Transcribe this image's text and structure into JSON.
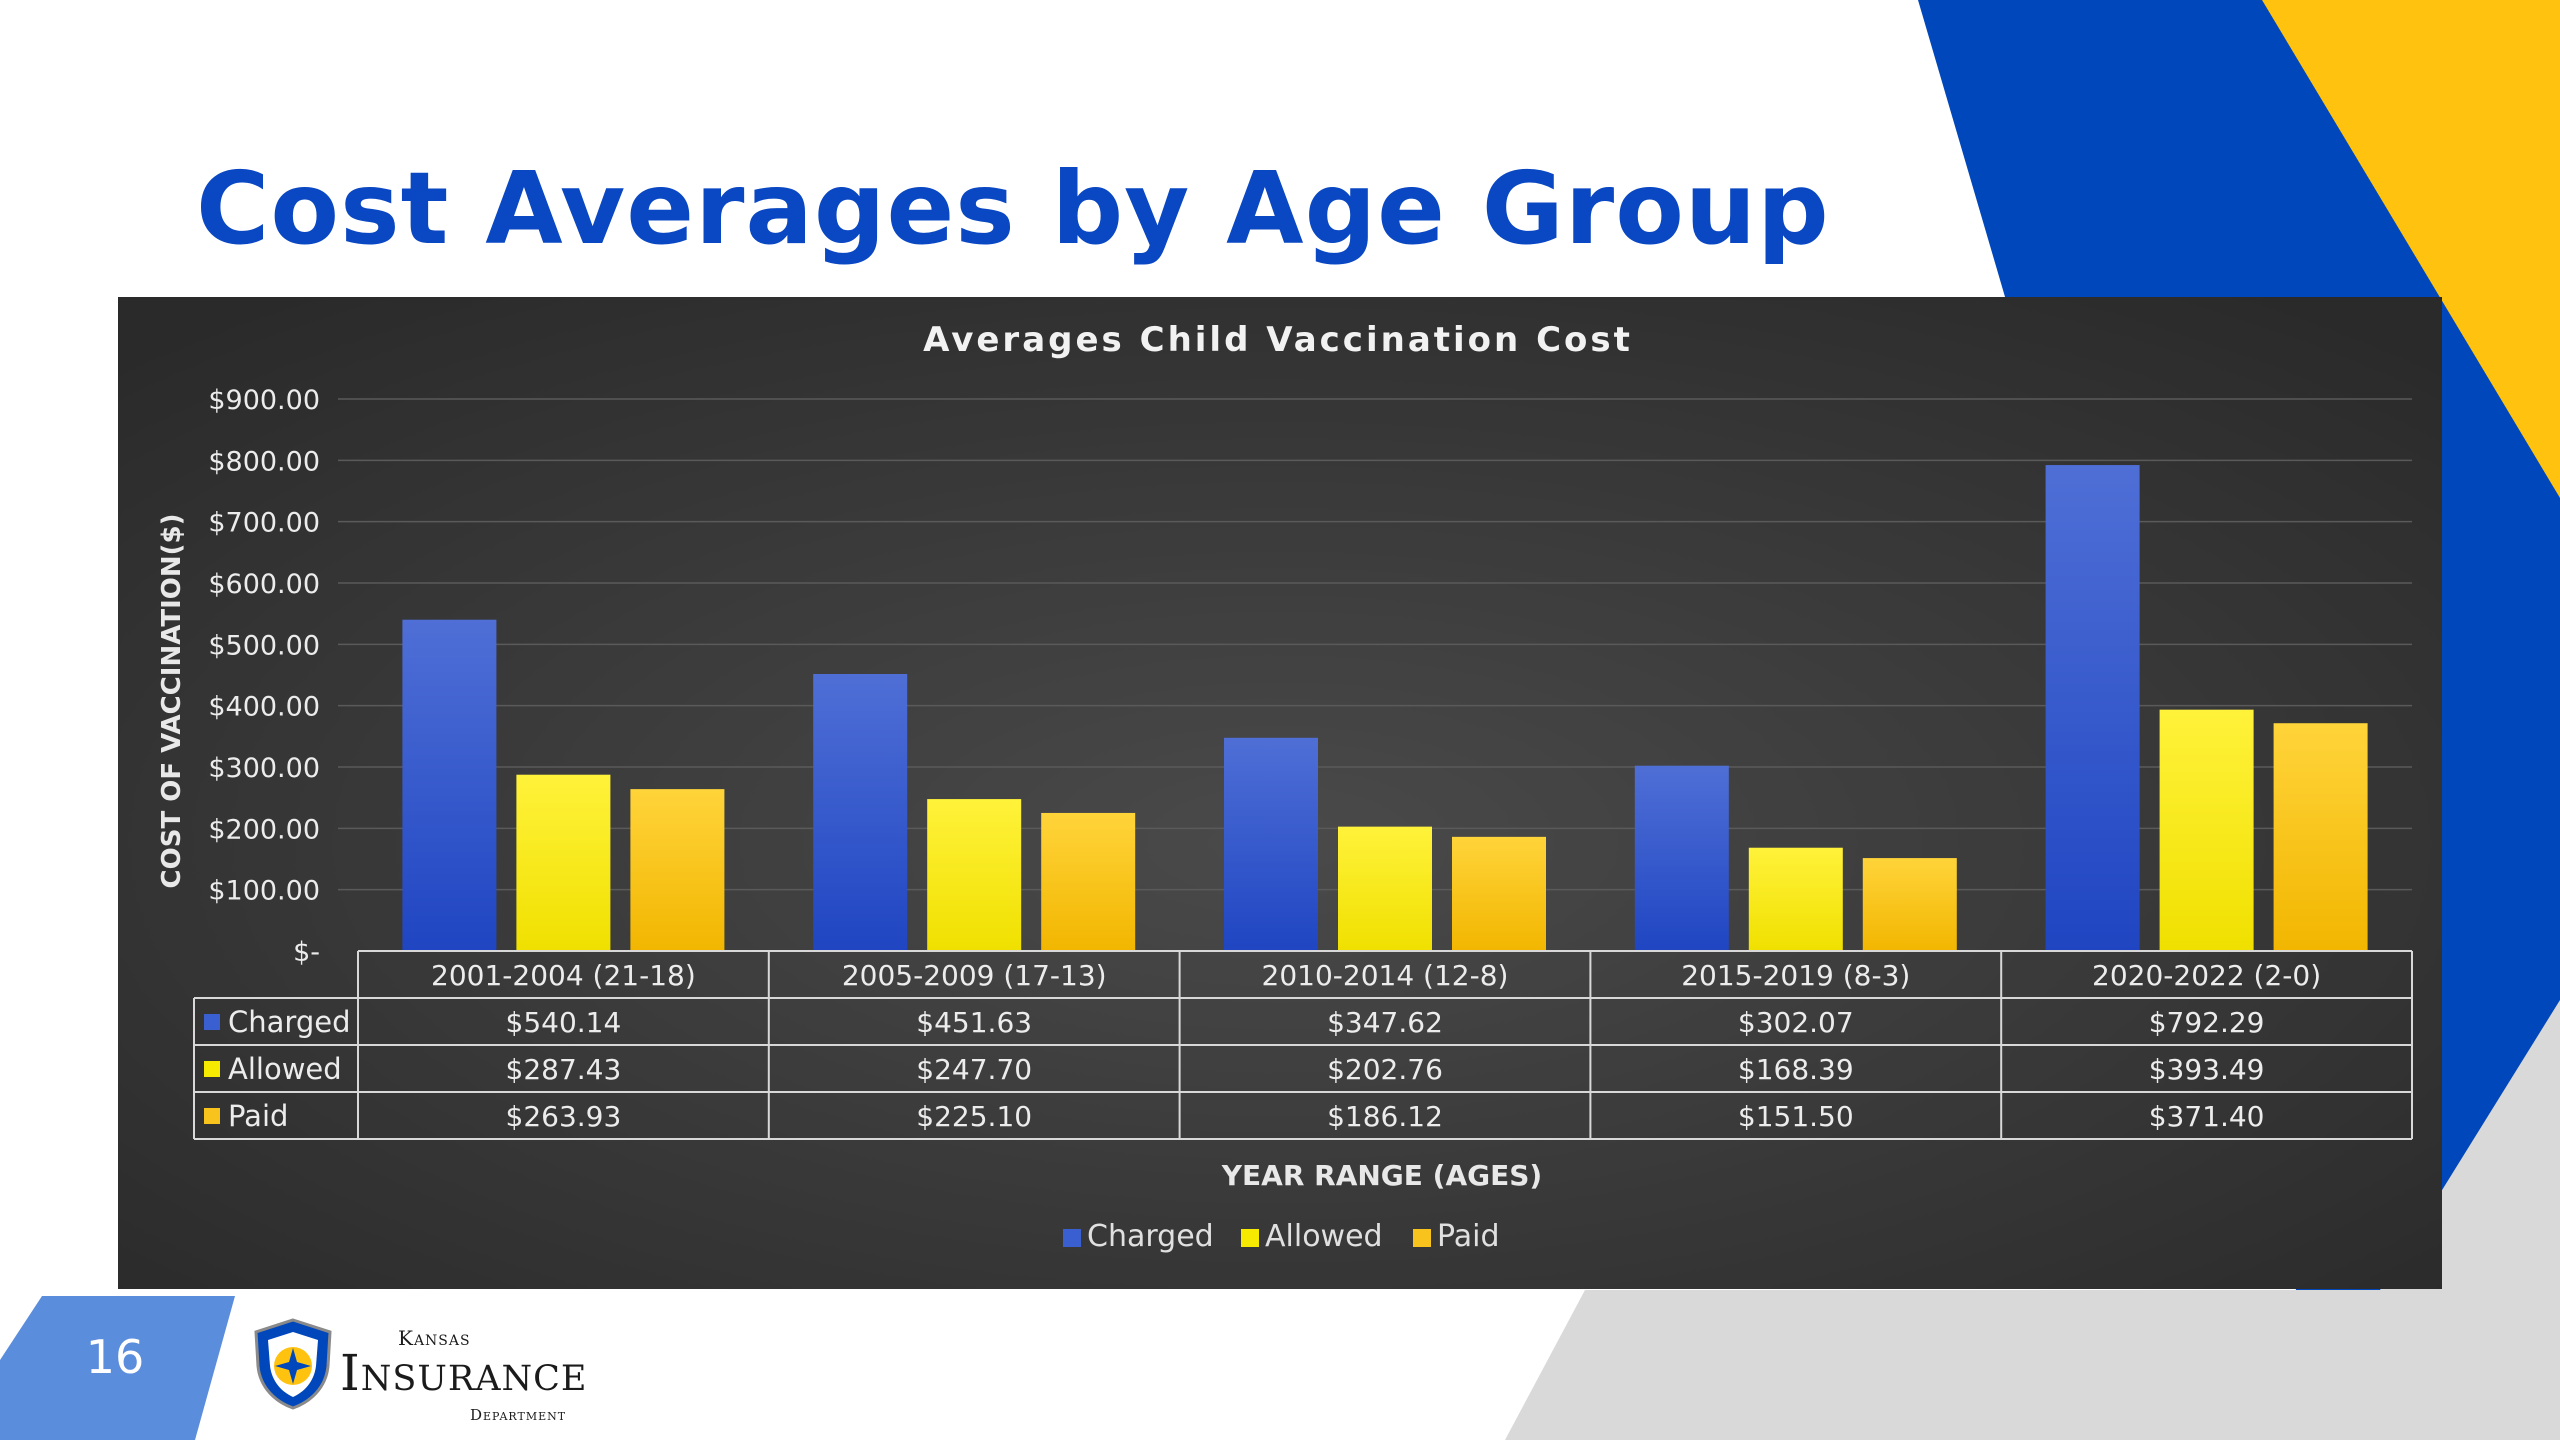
{
  "slide": {
    "title": "Cost Averages by Age Group",
    "number": "16",
    "logo": {
      "line1": "Kansas",
      "line2": "Insurance",
      "line3": "Department"
    }
  },
  "colors": {
    "title": "#0a47c2",
    "blue": "#0047bb",
    "gold": "#ffc20e",
    "gray": "#d9d9d9",
    "chart_bg": "#3a3a3a",
    "charged": "#3a5fd0",
    "allowed": "#f5ea00",
    "paid": "#f7c31c"
  },
  "chart_data": {
    "type": "bar",
    "title": "Averages Child Vaccination Cost",
    "xlabel": "YEAR RANGE (AGES)",
    "ylabel": "COST OF VACCINATION($)",
    "ylim": [
      0,
      900
    ],
    "y_ticks": [
      {
        "value": 900,
        "label": "$900.00"
      },
      {
        "value": 800,
        "label": "$800.00"
      },
      {
        "value": 700,
        "label": "$700.00"
      },
      {
        "value": 600,
        "label": "$600.00"
      },
      {
        "value": 500,
        "label": "$500.00"
      },
      {
        "value": 400,
        "label": "$400.00"
      },
      {
        "value": 300,
        "label": "$300.00"
      },
      {
        "value": 200,
        "label": "$200.00"
      },
      {
        "value": 100,
        "label": "$100.00"
      },
      {
        "value": 0,
        "label": "$-"
      }
    ],
    "grid": true,
    "legend_position": "bottom",
    "categories": [
      "2001-2004 (21-18)",
      "2005-2009 (17-13)",
      "2010-2014 (12-8)",
      "2015-2019 (8-3)",
      "2020-2022 (2-0)"
    ],
    "series": [
      {
        "name": "Charged",
        "color": "#3a5fd0",
        "values": [
          540.14,
          451.63,
          347.62,
          302.07,
          792.29
        ],
        "labels": [
          "$540.14",
          "$451.63",
          "$347.62",
          "$302.07",
          "$792.29"
        ]
      },
      {
        "name": "Allowed",
        "color": "#f5ea00",
        "values": [
          287.43,
          247.7,
          202.76,
          168.39,
          393.49
        ],
        "labels": [
          "$287.43",
          "$247.70",
          "$202.76",
          "$168.39",
          "$393.49"
        ]
      },
      {
        "name": "Paid",
        "color": "#f7c31c",
        "values": [
          263.93,
          225.1,
          186.12,
          151.5,
          371.4
        ],
        "labels": [
          "$263.93",
          "$225.10",
          "$186.12",
          "$151.50",
          "$371.40"
        ]
      }
    ]
  }
}
